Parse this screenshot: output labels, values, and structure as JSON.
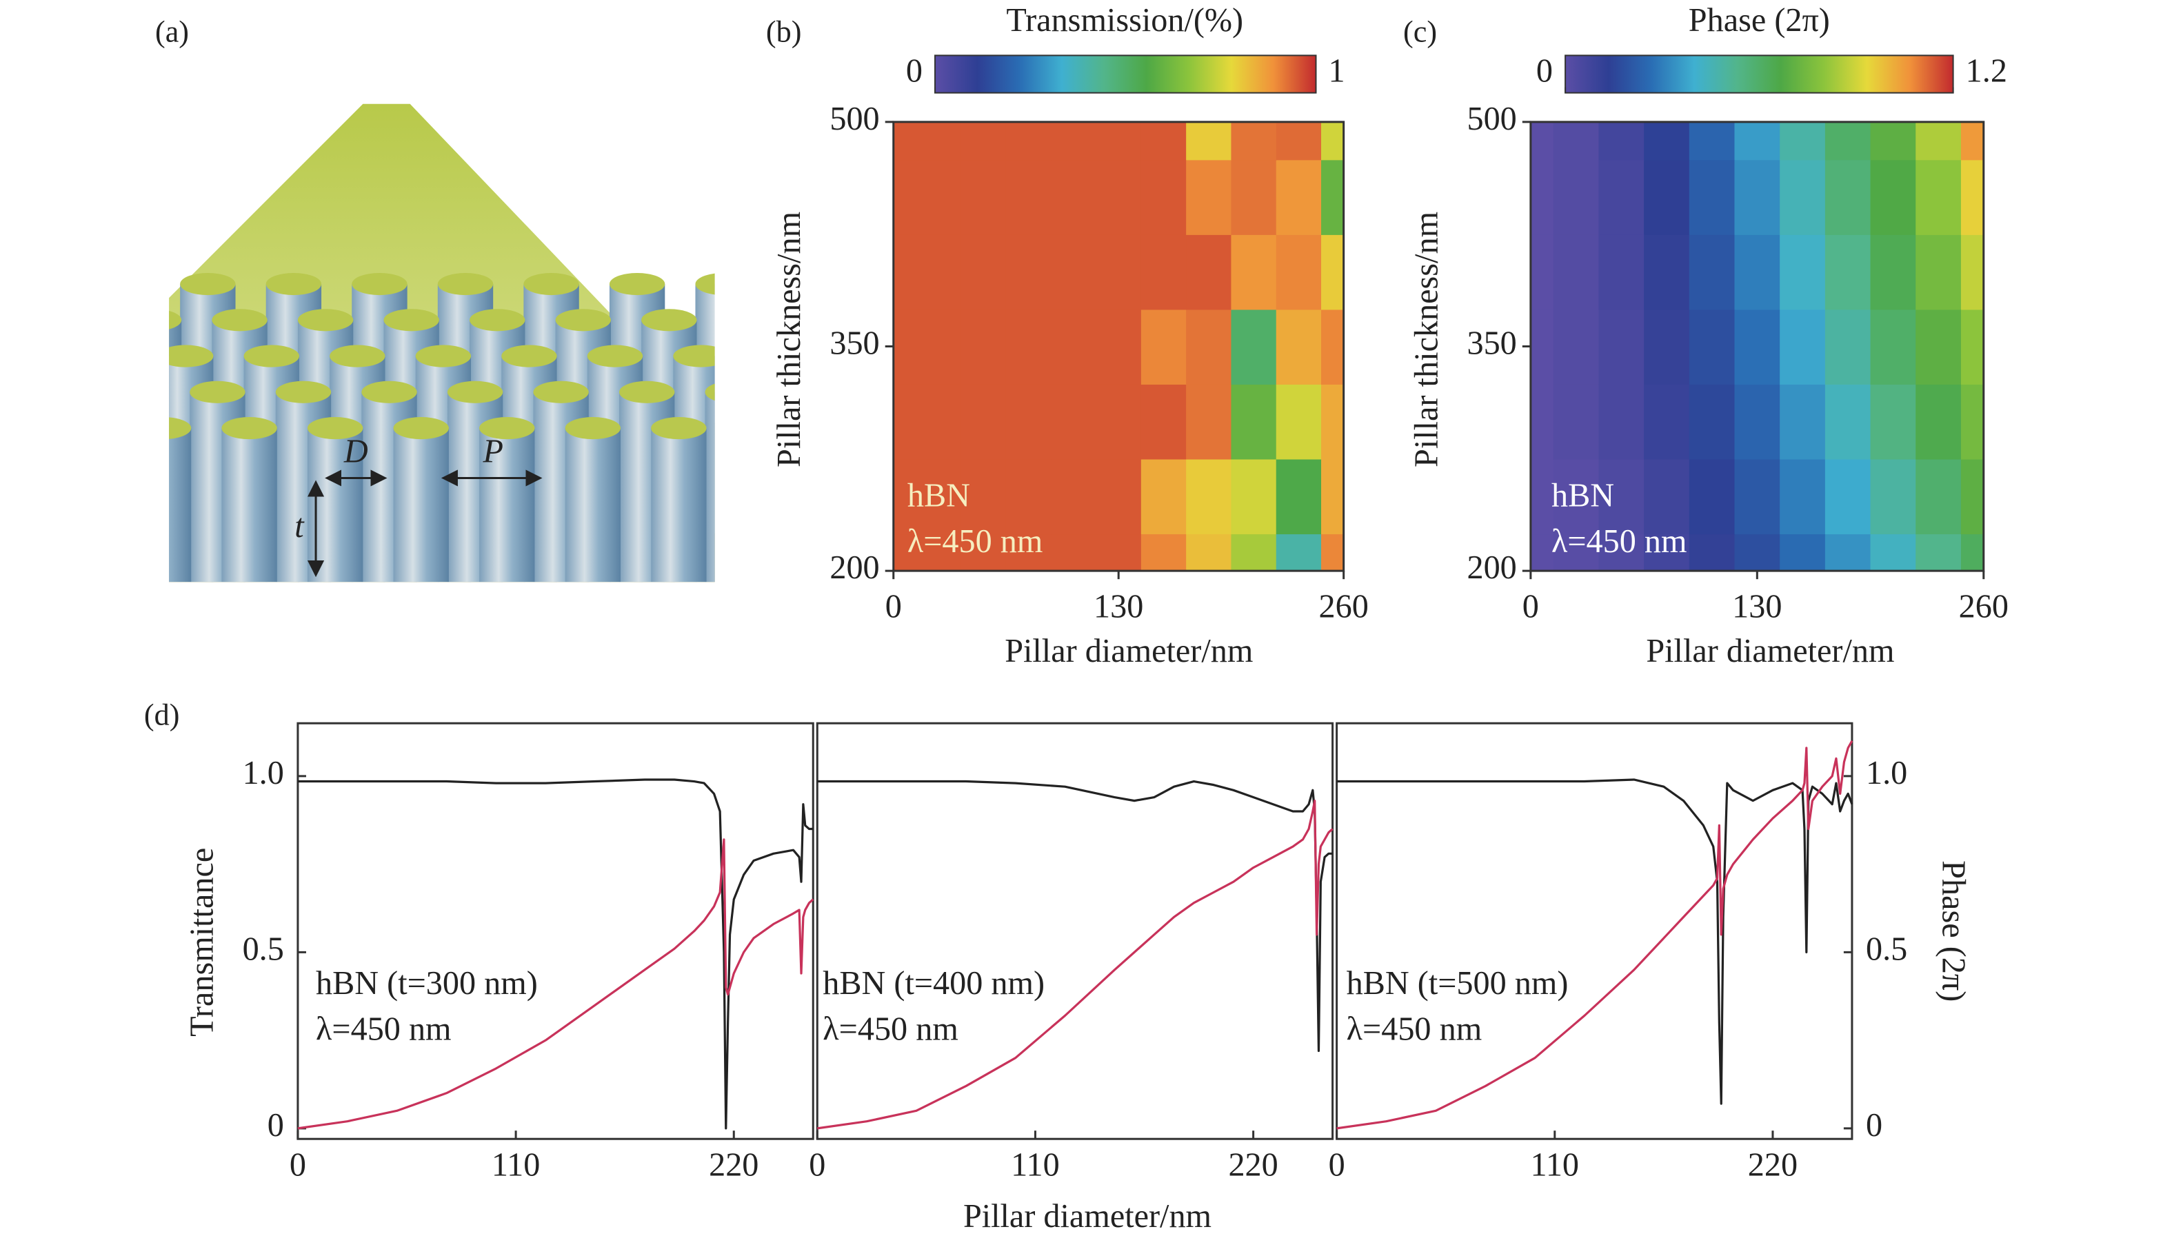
{
  "figure": {
    "panel_labels": [
      "(a)",
      "(b)",
      "(c)",
      "(d)"
    ],
    "illustration_labels": [
      "D",
      "P",
      "t"
    ]
  },
  "chart_data": [
    {
      "type": "heatmap",
      "title": "Transmission/(%)",
      "xlabel": "Pillar diameter/nm",
      "ylabel": "Pillar thickness/nm",
      "x": [
        0,
        26,
        52,
        78,
        104,
        130,
        156,
        182,
        208,
        234,
        260
      ],
      "y": [
        200,
        250,
        300,
        350,
        400,
        450,
        500
      ],
      "values": [
        [
          0.95,
          0.95,
          0.95,
          0.95,
          0.95,
          0.95,
          0.9,
          0.82,
          0.7,
          0.4,
          0.9
        ],
        [
          0.95,
          0.95,
          0.95,
          0.95,
          0.95,
          0.95,
          0.85,
          0.8,
          0.75,
          0.55,
          0.85
        ],
        [
          0.95,
          0.95,
          0.95,
          0.95,
          0.95,
          0.95,
          0.95,
          0.92,
          0.6,
          0.75,
          0.85
        ],
        [
          0.95,
          0.95,
          0.95,
          0.95,
          0.95,
          0.95,
          0.9,
          0.92,
          0.5,
          0.85,
          0.9
        ],
        [
          0.95,
          0.95,
          0.95,
          0.95,
          0.95,
          0.95,
          0.95,
          0.95,
          0.88,
          0.9,
          0.8
        ],
        [
          0.95,
          0.95,
          0.95,
          0.95,
          0.95,
          0.95,
          0.95,
          0.9,
          0.92,
          0.88,
          0.6
        ],
        [
          0.95,
          0.95,
          0.95,
          0.95,
          0.95,
          0.95,
          0.95,
          0.8,
          0.92,
          0.93,
          0.75
        ]
      ],
      "xlim": [
        0,
        260
      ],
      "xticks": [
        0,
        130,
        260
      ],
      "ylim": [
        200,
        500
      ],
      "yticks": [
        200,
        350,
        500
      ],
      "zlim": [
        0,
        1
      ],
      "zticks": [
        0,
        1
      ],
      "colormap": [
        "#5b4ea6",
        "#2e3f94",
        "#2a6db4",
        "#3fb0d0",
        "#52b58a",
        "#4ea846",
        "#8cc43c",
        "#e6d93a",
        "#f0913a",
        "#c22a2e"
      ],
      "annotations": [
        "hBN",
        "λ=450 nm"
      ],
      "annotation_color": "#f6eec0"
    },
    {
      "type": "heatmap",
      "title": "Phase (2π)",
      "xlabel": "Pillar diameter/nm",
      "ylabel": "Pillar thickness/nm",
      "x": [
        0,
        26,
        52,
        78,
        104,
        130,
        156,
        182,
        208,
        234,
        260
      ],
      "y": [
        200,
        250,
        300,
        350,
        400,
        450,
        500
      ],
      "values": [
        [
          0.0,
          0.01,
          0.03,
          0.07,
          0.12,
          0.18,
          0.26,
          0.34,
          0.43,
          0.53,
          0.62
        ],
        [
          0.0,
          0.01,
          0.04,
          0.08,
          0.14,
          0.21,
          0.3,
          0.39,
          0.49,
          0.59,
          0.7
        ],
        [
          0.0,
          0.02,
          0.05,
          0.1,
          0.16,
          0.24,
          0.34,
          0.44,
          0.55,
          0.65,
          0.75
        ],
        [
          0.0,
          0.02,
          0.05,
          0.11,
          0.18,
          0.27,
          0.38,
          0.49,
          0.6,
          0.7,
          0.8
        ],
        [
          0.0,
          0.02,
          0.06,
          0.12,
          0.2,
          0.3,
          0.42,
          0.53,
          0.64,
          0.75,
          0.88
        ],
        [
          0.0,
          0.02,
          0.06,
          0.13,
          0.22,
          0.33,
          0.45,
          0.57,
          0.67,
          0.8,
          0.95
        ],
        [
          0.0,
          0.02,
          0.07,
          0.14,
          0.24,
          0.36,
          0.48,
          0.6,
          0.7,
          0.85,
          1.05
        ]
      ],
      "xlim": [
        0,
        260
      ],
      "xticks": [
        0,
        130,
        260
      ],
      "ylim": [
        200,
        500
      ],
      "yticks": [
        200,
        350,
        500
      ],
      "zlim": [
        0,
        1.2
      ],
      "zticks": [
        0,
        1.2
      ],
      "colormap": [
        "#5b4ea6",
        "#2e3f94",
        "#2a6db4",
        "#3fb0d0",
        "#52b58a",
        "#4ea846",
        "#8cc43c",
        "#e6d93a",
        "#f0913a",
        "#c22a2e"
      ],
      "annotations": [
        "hBN",
        "λ=450 nm"
      ],
      "annotation_color": "#ffffff"
    },
    {
      "type": "line",
      "ylabel": "Transmittance",
      "x": [
        0,
        25,
        50,
        75,
        100,
        125,
        150,
        175,
        190,
        200,
        205,
        210,
        213,
        215,
        216,
        217,
        218,
        220,
        225,
        230,
        240,
        250,
        253,
        254,
        255,
        256,
        258,
        260
      ],
      "series": [
        {
          "color": "#222222",
          "values": [
            0.985,
            0.985,
            0.985,
            0.985,
            0.98,
            0.98,
            0.985,
            0.99,
            0.99,
            0.985,
            0.98,
            0.95,
            0.9,
            0.5,
            0.0,
            0.3,
            0.55,
            0.65,
            0.72,
            0.76,
            0.78,
            0.79,
            0.77,
            0.7,
            0.92,
            0.86,
            0.85,
            0.85
          ]
        },
        {
          "color": "#c8325a",
          "axis": "y2",
          "values": [
            0.0,
            0.02,
            0.05,
            0.1,
            0.17,
            0.25,
            0.35,
            0.45,
            0.51,
            0.56,
            0.59,
            0.63,
            0.67,
            0.82,
            0.4,
            0.38,
            0.4,
            0.44,
            0.5,
            0.54,
            0.58,
            0.61,
            0.62,
            0.44,
            0.6,
            0.62,
            0.64,
            0.65
          ]
        }
      ],
      "xlim": [
        0,
        260
      ],
      "xticks": [
        0,
        110,
        220
      ],
      "ylim": [
        -0.03,
        1.15
      ],
      "yticks": [
        0,
        0.5,
        {
          "value": 1,
          "label": "1.0"
        }
      ],
      "y2lim": [
        -0.03,
        1.15
      ],
      "annotations": [
        "hBN (t=300 nm)",
        "λ=450 nm"
      ],
      "annotation_color": "#222222"
    },
    {
      "type": "line",
      "xlabel": "Pillar diameter/nm",
      "x": [
        0,
        25,
        50,
        75,
        100,
        125,
        150,
        160,
        170,
        180,
        190,
        200,
        210,
        220,
        230,
        240,
        245,
        248,
        250,
        251,
        252,
        253,
        254,
        256,
        258,
        260
      ],
      "series": [
        {
          "color": "#222222",
          "values": [
            0.985,
            0.985,
            0.985,
            0.985,
            0.98,
            0.97,
            0.94,
            0.93,
            0.94,
            0.97,
            0.985,
            0.975,
            0.96,
            0.94,
            0.92,
            0.9,
            0.9,
            0.92,
            0.96,
            0.9,
            0.6,
            0.22,
            0.7,
            0.77,
            0.78,
            0.78
          ]
        },
        {
          "color": "#c8325a",
          "axis": "y2",
          "values": [
            0.0,
            0.02,
            0.05,
            0.12,
            0.2,
            0.32,
            0.45,
            0.5,
            0.55,
            0.6,
            0.64,
            0.67,
            0.7,
            0.74,
            0.77,
            0.8,
            0.82,
            0.85,
            0.9,
            0.93,
            0.55,
            0.75,
            0.8,
            0.82,
            0.84,
            0.85
          ]
        }
      ],
      "xlim": [
        0,
        260
      ],
      "xticks": [
        0,
        110,
        220
      ],
      "ylim": [
        -0.03,
        1.15
      ],
      "y2lim": [
        -0.03,
        1.15
      ],
      "annotations": [
        "hBN (t=400 nm)",
        "λ=450 nm"
      ],
      "annotation_color": "#222222"
    },
    {
      "type": "line",
      "y2label": "Phase (2π)",
      "x": [
        0,
        25,
        50,
        75,
        100,
        125,
        150,
        165,
        175,
        185,
        190,
        192,
        193,
        194,
        195,
        197,
        200,
        210,
        220,
        230,
        235,
        236,
        237,
        238,
        240,
        245,
        250,
        252,
        254,
        256,
        258,
        260
      ],
      "series": [
        {
          "color": "#222222",
          "values": [
            0.985,
            0.985,
            0.985,
            0.985,
            0.985,
            0.985,
            0.99,
            0.97,
            0.93,
            0.86,
            0.8,
            0.7,
            0.3,
            0.07,
            0.6,
            0.98,
            0.96,
            0.93,
            0.96,
            0.98,
            0.96,
            0.85,
            0.5,
            0.93,
            0.97,
            0.95,
            0.92,
            0.98,
            0.9,
            0.93,
            0.95,
            0.92
          ]
        },
        {
          "color": "#c8325a",
          "axis": "y2",
          "values": [
            0.0,
            0.02,
            0.05,
            0.12,
            0.2,
            0.32,
            0.45,
            0.54,
            0.6,
            0.66,
            0.69,
            0.71,
            0.86,
            0.55,
            0.68,
            0.72,
            0.75,
            0.82,
            0.88,
            0.93,
            0.96,
            0.98,
            1.08,
            0.85,
            0.93,
            0.97,
            1.0,
            1.05,
            0.95,
            1.04,
            1.08,
            1.1
          ]
        }
      ],
      "xlim": [
        0,
        260
      ],
      "xticks": [
        0,
        110,
        220
      ],
      "ylim": [
        -0.03,
        1.15
      ],
      "y2lim": [
        -0.03,
        1.15
      ],
      "y2ticks": [
        0,
        0.5,
        {
          "value": 1,
          "label": "1.0"
        }
      ],
      "annotations": [
        "hBN (t=500 nm)",
        "λ=450 nm"
      ],
      "annotation_color": "#222222"
    }
  ]
}
